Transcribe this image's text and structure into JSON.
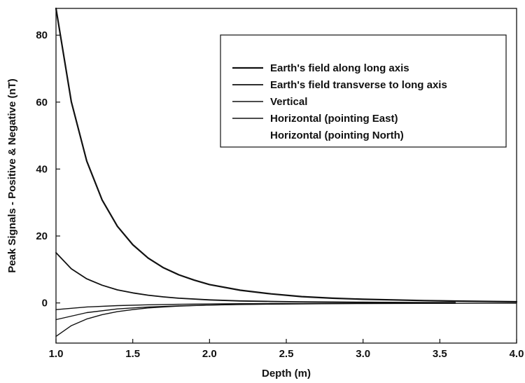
{
  "chart_data": {
    "type": "line",
    "title": "",
    "xlabel": "Depth (m)",
    "ylabel": "Peak Signals  -  Positive & Negative (nT)",
    "xlim": [
      1.0,
      4.0
    ],
    "ylim": [
      -12,
      88
    ],
    "xticks": [
      "1.0",
      "1.5",
      "2.0",
      "2.5",
      "3.0",
      "3.5",
      "4.0"
    ],
    "yticks": [
      "0",
      "20",
      "40",
      "60",
      "80"
    ],
    "grid": false,
    "legend_position": "top-right",
    "line_color": "#111111",
    "series": [
      {
        "name": "Earth's field along long axis",
        "x": [
          1.0,
          1.1,
          1.2,
          1.3,
          1.4,
          1.5,
          1.6,
          1.7,
          1.8,
          1.9,
          2.0,
          2.2,
          2.4,
          2.6,
          2.8,
          3.0,
          3.2,
          3.4,
          3.6,
          3.8,
          4.0
        ],
        "y": [
          88.0,
          60.1,
          42.4,
          30.8,
          22.9,
          17.4,
          13.4,
          10.5,
          8.4,
          6.8,
          5.5,
          3.8,
          2.7,
          1.9,
          1.4,
          1.1,
          0.9,
          0.7,
          0.55,
          0.45,
          0.35
        ]
      },
      {
        "name": "Earth's field transverse to long axis",
        "x": [
          1.0,
          1.1,
          1.2,
          1.3,
          1.4,
          1.5,
          1.6,
          1.7,
          1.8,
          2.0,
          2.2,
          2.4,
          2.6,
          2.8,
          3.0,
          3.2,
          3.4,
          3.6
        ],
        "y": [
          15.0,
          10.2,
          7.2,
          5.3,
          3.9,
          3.0,
          2.3,
          1.8,
          1.4,
          0.9,
          0.6,
          0.45,
          0.33,
          0.25,
          0.19,
          0.15,
          0.12,
          0.1
        ]
      },
      {
        "name": "Vertical",
        "x": [
          1.0,
          1.1,
          1.2,
          1.3,
          1.4,
          1.5,
          1.6,
          1.7,
          1.8,
          1.9,
          2.0,
          2.2,
          2.4,
          2.6,
          2.8,
          3.0,
          3.2,
          3.4,
          3.6
        ],
        "y": [
          -10.0,
          -6.8,
          -4.8,
          -3.5,
          -2.6,
          -2.0,
          -1.5,
          -1.2,
          -0.95,
          -0.78,
          -0.63,
          -0.43,
          -0.31,
          -0.23,
          -0.17,
          -0.13,
          -0.1,
          -0.08,
          -0.07
        ]
      },
      {
        "name": "Horizontal (pointing East)",
        "x": [
          1.0,
          1.2,
          1.4,
          1.6,
          1.8,
          2.0,
          2.2,
          2.4,
          2.6,
          2.8,
          3.0,
          3.2,
          3.4,
          3.6,
          3.8,
          4.0
        ],
        "y": [
          -5.0,
          -2.9,
          -1.8,
          -1.2,
          -0.86,
          -0.63,
          -0.47,
          -0.36,
          -0.28,
          -0.23,
          -0.19,
          -0.16,
          -0.13,
          -0.11,
          -0.1,
          -0.08
        ]
      },
      {
        "name": "Horizontal (pointing North)",
        "x": [
          1.0,
          1.2,
          1.4,
          1.6,
          1.8,
          2.0,
          2.2,
          2.4,
          2.6,
          2.8,
          3.0,
          3.2,
          3.4,
          3.6
        ],
        "y": [
          -2.0,
          -1.2,
          -0.8,
          -0.55,
          -0.4,
          -0.3,
          -0.23,
          -0.18,
          -0.15,
          -0.12,
          -0.1,
          -0.09,
          -0.08,
          -0.07
        ]
      }
    ]
  }
}
